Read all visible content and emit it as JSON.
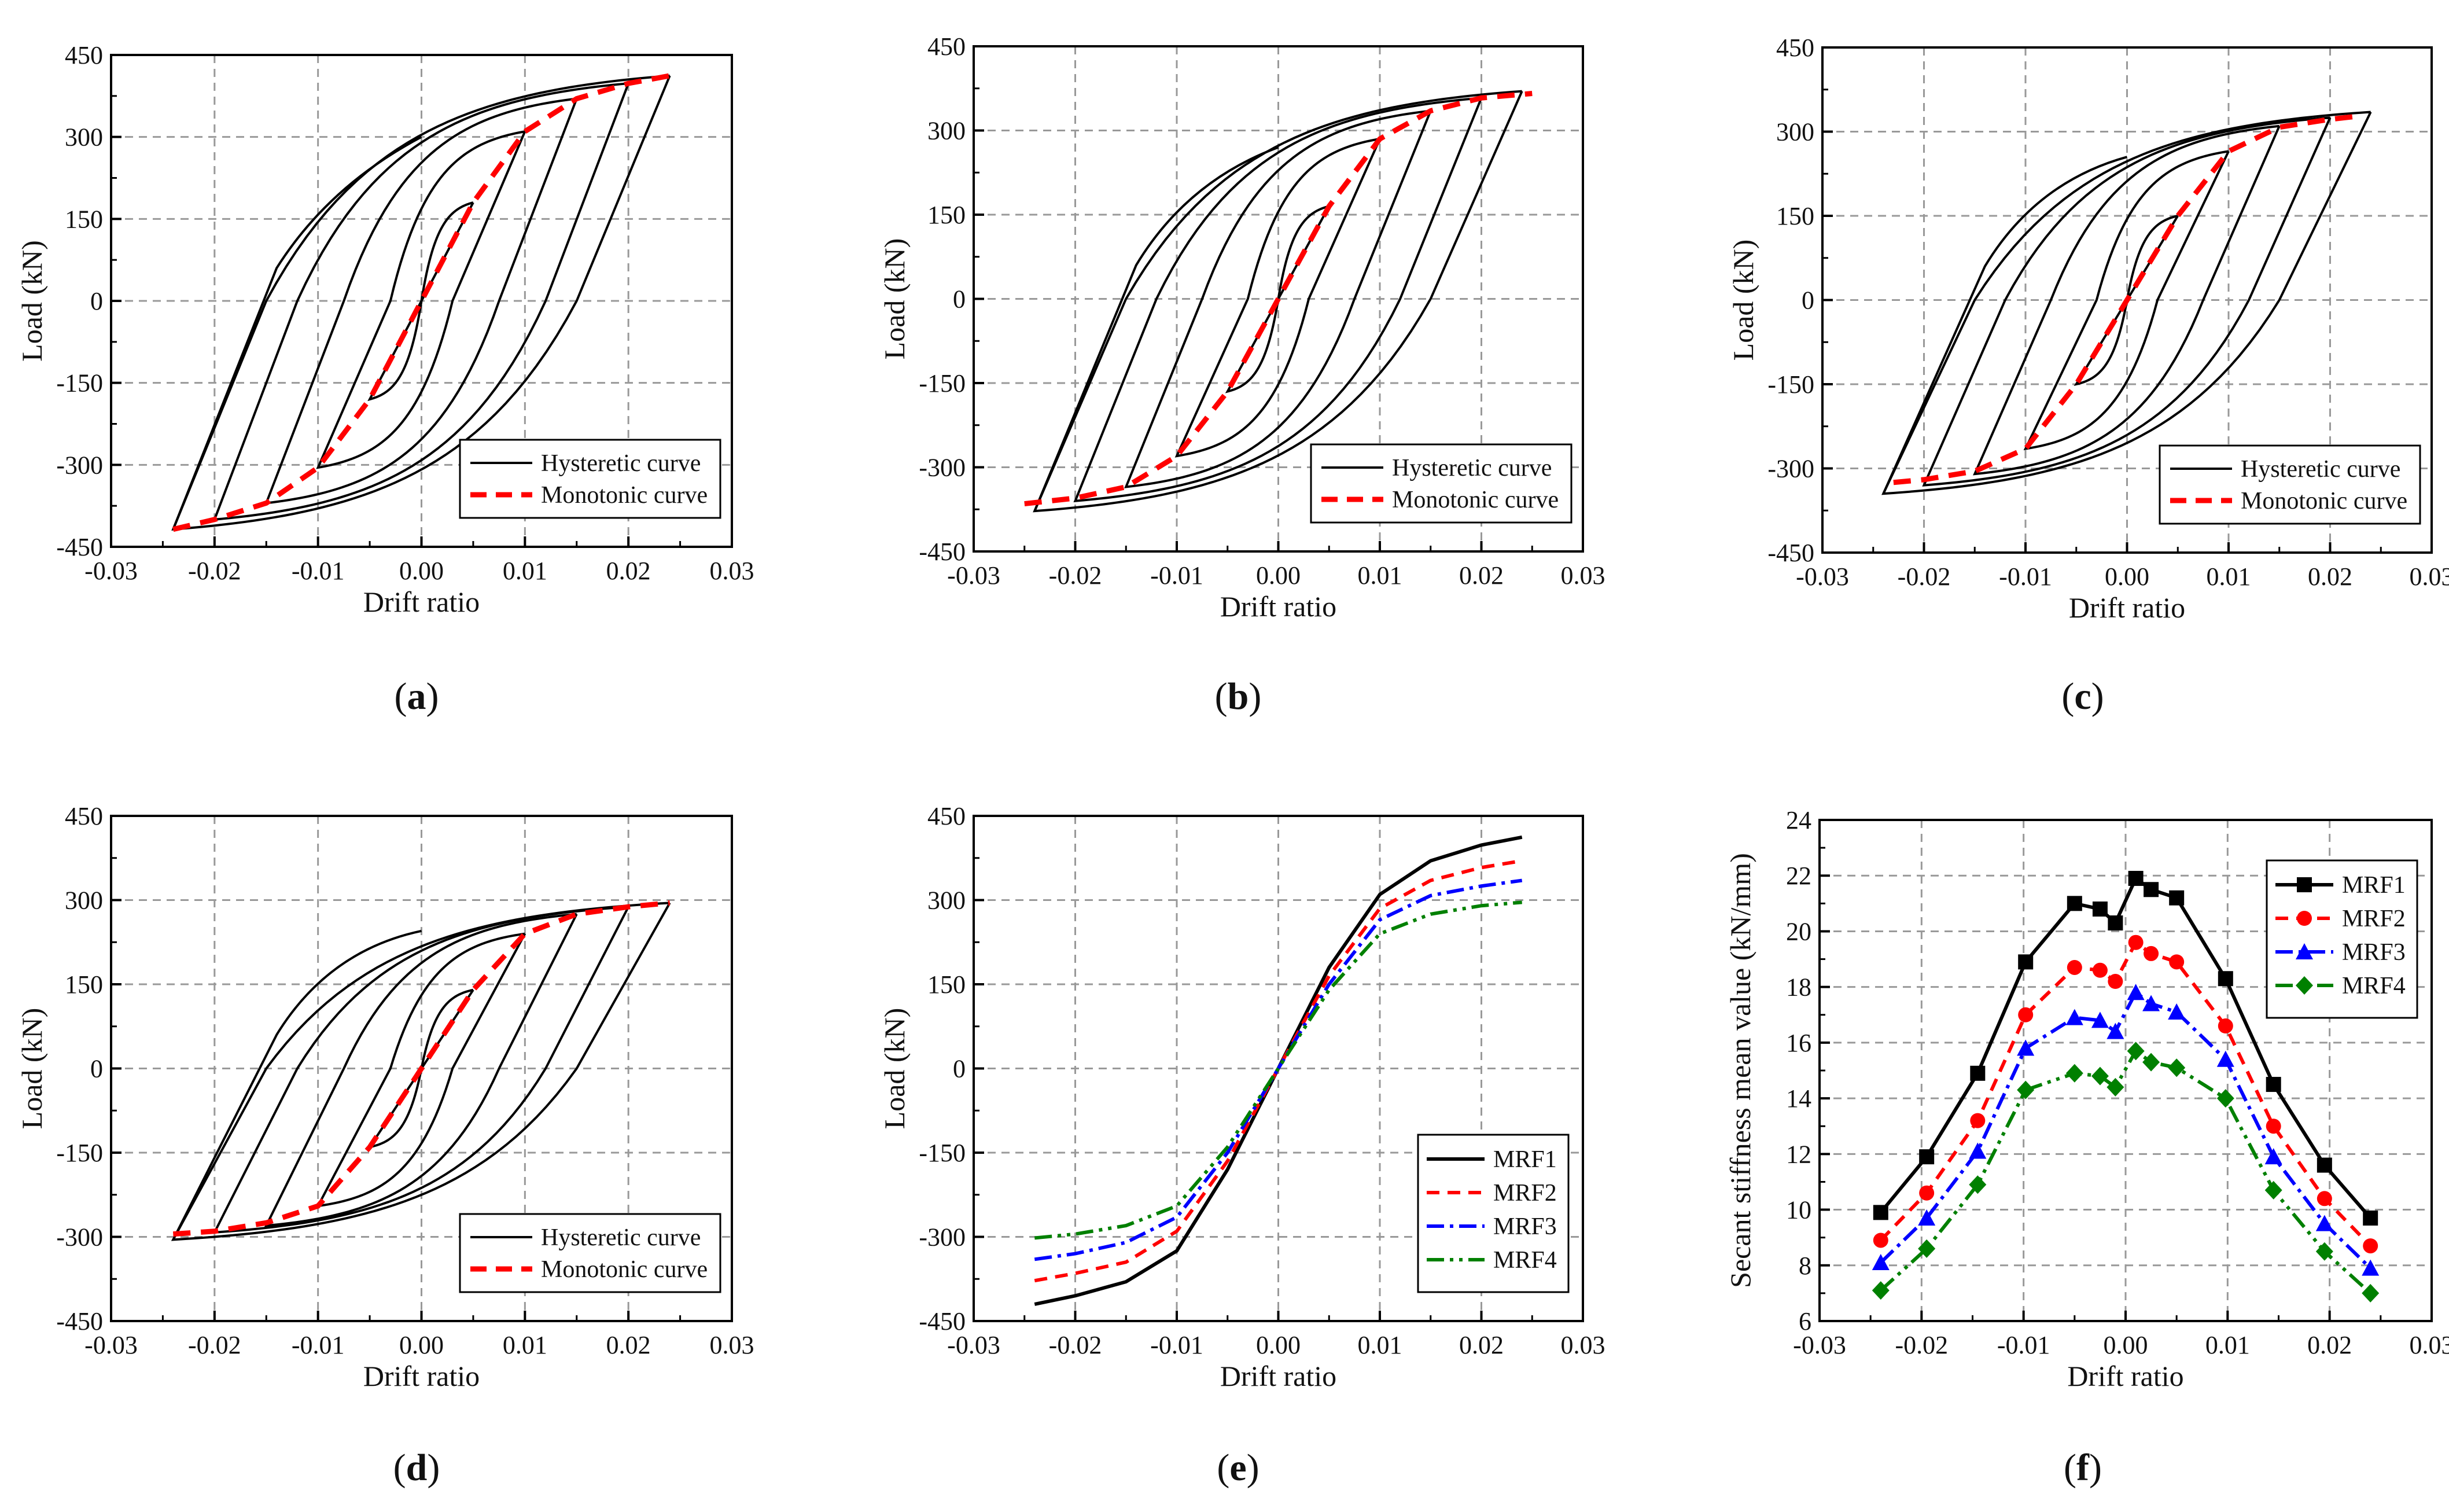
{
  "figure": {
    "panels": [
      "a",
      "b",
      "c",
      "d",
      "e",
      "f"
    ]
  },
  "chart_data": [
    {
      "id": "a",
      "caption": "a",
      "type": "line",
      "xlabel": "Drift ratio",
      "ylabel": "Load (kN)",
      "xlim": [
        -0.03,
        0.03
      ],
      "ylim": [
        -450,
        450
      ],
      "xticks": [
        "-0.03",
        "-0.02",
        "-0.01",
        "0.00",
        "0.01",
        "0.02",
        "0.03"
      ],
      "yticks": [
        "-450",
        "-300",
        "-150",
        "0",
        "150",
        "300",
        "450"
      ],
      "grid": true,
      "legend_position": "bottom-right",
      "legend": [
        {
          "label": "Hysteretic curve",
          "style": "solid-black"
        },
        {
          "label": "Monotonic curve",
          "style": "dashed-red"
        }
      ],
      "hysteresis": {
        "amplitudes": [
          0.005,
          0.01,
          0.015,
          0.02,
          0.024
        ],
        "peak_pos": [
          180,
          310,
          370,
          398,
          412
        ],
        "peak_neg": [
          -180,
          -305,
          -370,
          -400,
          -418
        ],
        "residual_drift": [
          0.0,
          0.003,
          0.0075,
          0.012,
          0.015
        ],
        "initial_branch_end": {
          "x": 0.0,
          "y": 300
        }
      },
      "monotonic": {
        "x": [
          -0.024,
          -0.02,
          -0.015,
          -0.01,
          -0.005,
          0,
          0.005,
          0.01,
          0.015,
          0.02,
          0.024
        ],
        "y": [
          -418,
          -400,
          -370,
          -305,
          -180,
          0,
          180,
          310,
          370,
          398,
          412
        ]
      }
    },
    {
      "id": "b",
      "caption": "b",
      "type": "line",
      "xlabel": "Drift ratio",
      "ylabel": "Load (kN)",
      "xlim": [
        -0.03,
        0.03
      ],
      "ylim": [
        -450,
        450
      ],
      "xticks": [
        "-0.03",
        "-0.02",
        "-0.01",
        "0.00",
        "0.01",
        "0.02",
        "0.03"
      ],
      "yticks": [
        "-450",
        "-300",
        "-150",
        "0",
        "150",
        "300",
        "450"
      ],
      "grid": true,
      "legend_position": "bottom-right",
      "legend": [
        {
          "label": "Hysteretic curve",
          "style": "solid-black"
        },
        {
          "label": "Monotonic curve",
          "style": "dashed-red"
        }
      ],
      "hysteresis": {
        "amplitudes": [
          0.005,
          0.01,
          0.015,
          0.02,
          0.024
        ],
        "peak_pos": [
          165,
          285,
          335,
          358,
          370
        ],
        "peak_neg": [
          -165,
          -280,
          -335,
          -360,
          -378
        ],
        "residual_drift": [
          0.0,
          0.003,
          0.0075,
          0.012,
          0.015
        ],
        "initial_branch_end": {
          "x": 0.0,
          "y": 270
        }
      },
      "monotonic": {
        "x": [
          -0.025,
          -0.02,
          -0.015,
          -0.01,
          -0.005,
          0,
          0.005,
          0.01,
          0.015,
          0.02,
          0.025
        ],
        "y": [
          -365,
          -355,
          -335,
          -280,
          -165,
          0,
          165,
          285,
          335,
          358,
          366
        ]
      }
    },
    {
      "id": "c",
      "caption": "c",
      "type": "line",
      "xlabel": "Drift ratio",
      "ylabel": "Load (kN)",
      "xlim": [
        -0.03,
        0.03
      ],
      "ylim": [
        -450,
        450
      ],
      "xticks": [
        "-0.03",
        "-0.02",
        "-0.01",
        "0.00",
        "0.01",
        "0.02",
        "0.03"
      ],
      "yticks": [
        "-450",
        "-300",
        "-150",
        "0",
        "150",
        "300",
        "450"
      ],
      "grid": true,
      "legend_position": "bottom-right",
      "legend": [
        {
          "label": "Hysteretic curve",
          "style": "solid-black"
        },
        {
          "label": "Monotonic curve",
          "style": "dashed-red"
        }
      ],
      "hysteresis": {
        "amplitudes": [
          0.005,
          0.01,
          0.015,
          0.02,
          0.024
        ],
        "peak_pos": [
          150,
          265,
          310,
          325,
          335
        ],
        "peak_neg": [
          -150,
          -265,
          -310,
          -330,
          -345
        ],
        "residual_drift": [
          0.0,
          0.003,
          0.0075,
          0.012,
          0.015
        ],
        "initial_branch_end": {
          "x": 0.0,
          "y": 255
        }
      },
      "monotonic": {
        "x": [
          -0.023,
          -0.02,
          -0.015,
          -0.01,
          -0.005,
          0,
          0.005,
          0.01,
          0.015,
          0.02,
          0.023
        ],
        "y": [
          -325,
          -320,
          -305,
          -265,
          -150,
          0,
          150,
          265,
          308,
          322,
          328
        ]
      }
    },
    {
      "id": "d",
      "caption": "d",
      "type": "line",
      "xlabel": "Drift ratio",
      "ylabel": "Load (kN)",
      "xlim": [
        -0.03,
        0.03
      ],
      "ylim": [
        -450,
        450
      ],
      "xticks": [
        "-0.03",
        "-0.02",
        "-0.01",
        "0.00",
        "0.01",
        "0.02",
        "0.03"
      ],
      "yticks": [
        "-450",
        "-300",
        "-150",
        "0",
        "150",
        "300",
        "450"
      ],
      "grid": true,
      "legend_position": "bottom-right",
      "legend": [
        {
          "label": "Hysteretic curve",
          "style": "solid-black"
        },
        {
          "label": "Monotonic curve",
          "style": "dashed-red"
        }
      ],
      "hysteresis": {
        "amplitudes": [
          0.005,
          0.01,
          0.015,
          0.02,
          0.024
        ],
        "peak_pos": [
          140,
          240,
          275,
          288,
          295
        ],
        "peak_neg": [
          -140,
          -245,
          -280,
          -292,
          -305
        ],
        "residual_drift": [
          0.0,
          0.003,
          0.0075,
          0.012,
          0.015
        ],
        "initial_branch_end": {
          "x": 0.0,
          "y": 245
        }
      },
      "monotonic": {
        "x": [
          -0.024,
          -0.02,
          -0.015,
          -0.01,
          -0.005,
          0,
          0.005,
          0.01,
          0.015,
          0.02,
          0.024
        ],
        "y": [
          -295,
          -290,
          -275,
          -245,
          -140,
          0,
          140,
          240,
          275,
          288,
          295
        ]
      }
    },
    {
      "id": "e",
      "caption": "e",
      "type": "line",
      "xlabel": "Drift ratio",
      "ylabel": "Load (kN)",
      "xlim": [
        -0.03,
        0.03
      ],
      "ylim": [
        -450,
        450
      ],
      "xticks": [
        "-0.03",
        "-0.02",
        "-0.01",
        "0.00",
        "0.01",
        "0.02",
        "0.03"
      ],
      "yticks": [
        "-450",
        "-300",
        "-150",
        "0",
        "150",
        "300",
        "450"
      ],
      "grid": true,
      "legend_position": "bottom-right",
      "x": [
        -0.024,
        -0.02,
        -0.015,
        -0.01,
        -0.005,
        0,
        0.005,
        0.01,
        0.015,
        0.02,
        0.024
      ],
      "series": [
        {
          "name": "MRF1",
          "color": "#000000",
          "dash": "",
          "values": [
            -420,
            -405,
            -380,
            -325,
            -180,
            0,
            180,
            310,
            370,
            398,
            412
          ]
        },
        {
          "name": "MRF2",
          "color": "#ff0000",
          "dash": "22 14",
          "values": [
            -378,
            -365,
            -345,
            -290,
            -165,
            0,
            165,
            285,
            335,
            358,
            370
          ]
        },
        {
          "name": "MRF3",
          "color": "#0000ff",
          "dash": "30 10 6 10",
          "values": [
            -340,
            -330,
            -310,
            -265,
            -150,
            0,
            150,
            265,
            308,
            325,
            335
          ]
        },
        {
          "name": "MRF4",
          "color": "#008000",
          "dash": "30 10 6 10 6 10",
          "values": [
            -302,
            -295,
            -280,
            -245,
            -140,
            0,
            140,
            240,
            275,
            290,
            296
          ]
        }
      ]
    },
    {
      "id": "f",
      "caption": "f",
      "type": "line",
      "xlabel": "Drift ratio",
      "ylabel": "Secant stiffness mean value (kN/mm)",
      "xlim": [
        -0.03,
        0.03
      ],
      "ylim": [
        6,
        24
      ],
      "xticks": [
        "-0.03",
        "-0.02",
        "-0.01",
        "0.00",
        "0.01",
        "0.02",
        "0.03"
      ],
      "yticks": [
        "6",
        "8",
        "10",
        "12",
        "14",
        "16",
        "18",
        "20",
        "22",
        "24"
      ],
      "grid": true,
      "legend_position": "top-right",
      "x": [
        -0.024,
        -0.0195,
        -0.0145,
        -0.0098,
        -0.005,
        -0.0025,
        -0.001,
        0.001,
        0.0025,
        0.005,
        0.0098,
        0.0145,
        0.0195,
        0.024
      ],
      "series": [
        {
          "name": "MRF1",
          "color": "#000000",
          "dash": "",
          "marker": "square",
          "values": [
            9.9,
            11.9,
            14.9,
            18.9,
            21.0,
            20.8,
            20.3,
            21.9,
            21.5,
            21.2,
            18.3,
            14.5,
            11.6,
            9.7
          ]
        },
        {
          "name": "MRF2",
          "color": "#ff0000",
          "dash": "22 14",
          "marker": "circle",
          "values": [
            8.9,
            10.6,
            13.2,
            17.0,
            18.7,
            18.6,
            18.2,
            19.6,
            19.2,
            18.9,
            16.6,
            13.0,
            10.4,
            8.7
          ]
        },
        {
          "name": "MRF3",
          "color": "#0000ff",
          "dash": "30 10 6 10",
          "marker": "triangle",
          "values": [
            8.1,
            9.7,
            12.1,
            15.8,
            16.9,
            16.8,
            16.4,
            17.8,
            17.4,
            17.1,
            15.4,
            11.9,
            9.5,
            7.9
          ]
        },
        {
          "name": "MRF4",
          "color": "#008000",
          "dash": "30 10 6 10 6 10",
          "marker": "diamond",
          "values": [
            7.1,
            8.6,
            10.9,
            14.3,
            14.9,
            14.8,
            14.4,
            15.7,
            15.3,
            15.1,
            14.0,
            10.7,
            8.5,
            7.0
          ]
        }
      ]
    }
  ]
}
